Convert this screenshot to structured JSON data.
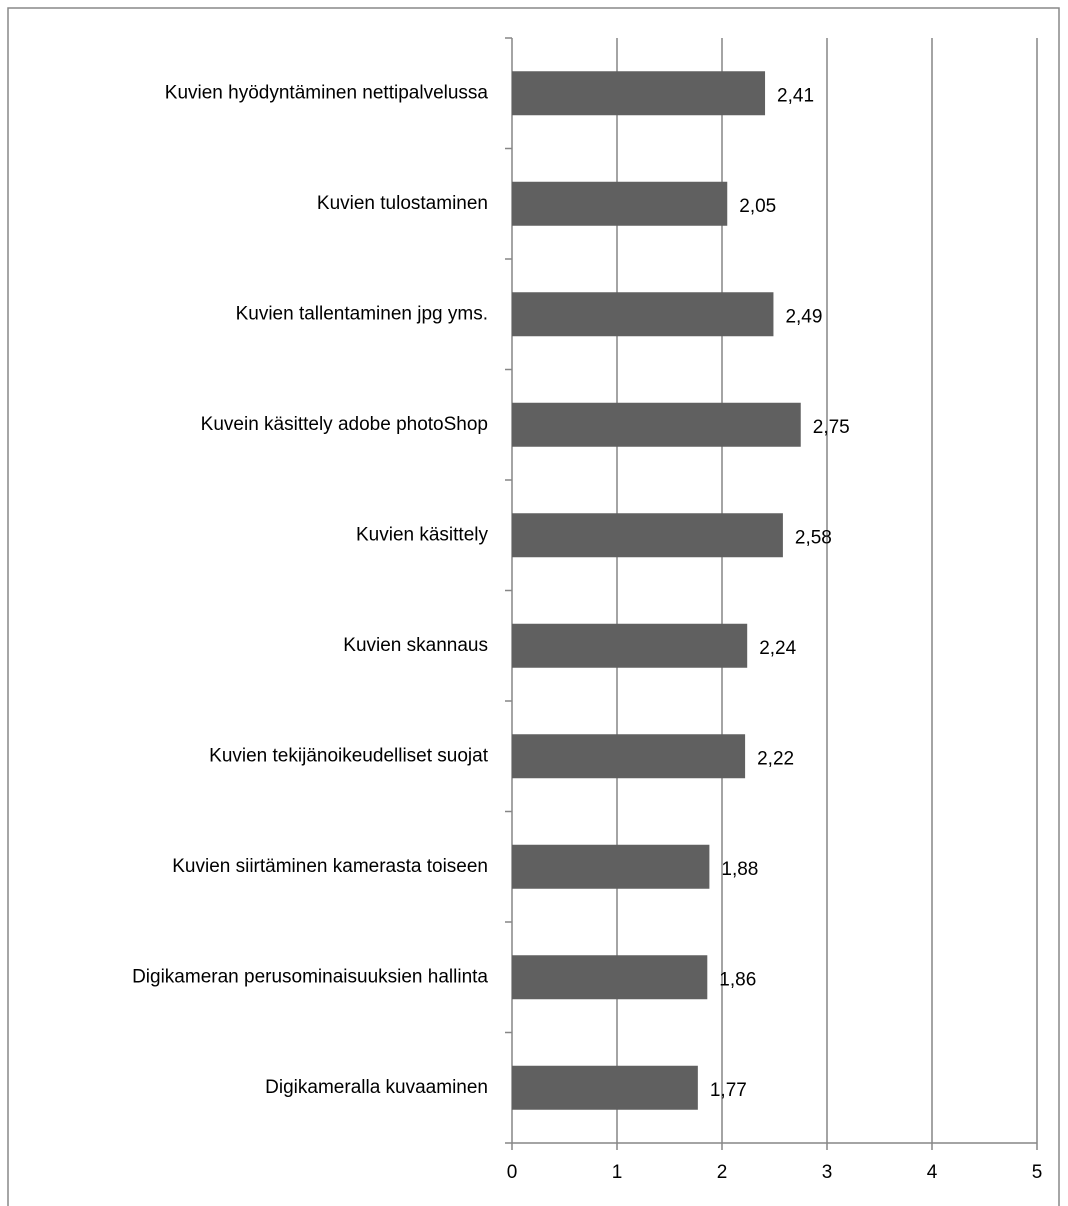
{
  "chart_data": {
    "type": "bar",
    "orientation": "horizontal",
    "categories": [
      "Kuvien hyödyntäminen nettipalvelussa",
      "Kuvien tulostaminen",
      "Kuvien tallentaminen jpg yms.",
      "Kuvein käsittely adobe photoShop",
      "Kuvien käsittely",
      "Kuvien skannaus",
      "Kuvien tekijänoikeudelliset suojat",
      "Kuvien siirtäminen kamerasta toiseen",
      "Digikameran perusominaisuuksien hallinta",
      "Digikameralla kuvaaminen"
    ],
    "values": [
      2.41,
      2.05,
      2.49,
      2.75,
      2.58,
      2.24,
      2.22,
      1.88,
      1.86,
      1.77
    ],
    "value_labels": [
      "2,41",
      "2,05",
      "2,49",
      "2,75",
      "2,58",
      "2,24",
      "2,22",
      "1,88",
      "1,86",
      "1,77"
    ],
    "color": "#606060",
    "xlim": [
      0,
      5
    ],
    "xticks": [
      0,
      1,
      2,
      3,
      4,
      5
    ],
    "grid": true
  }
}
